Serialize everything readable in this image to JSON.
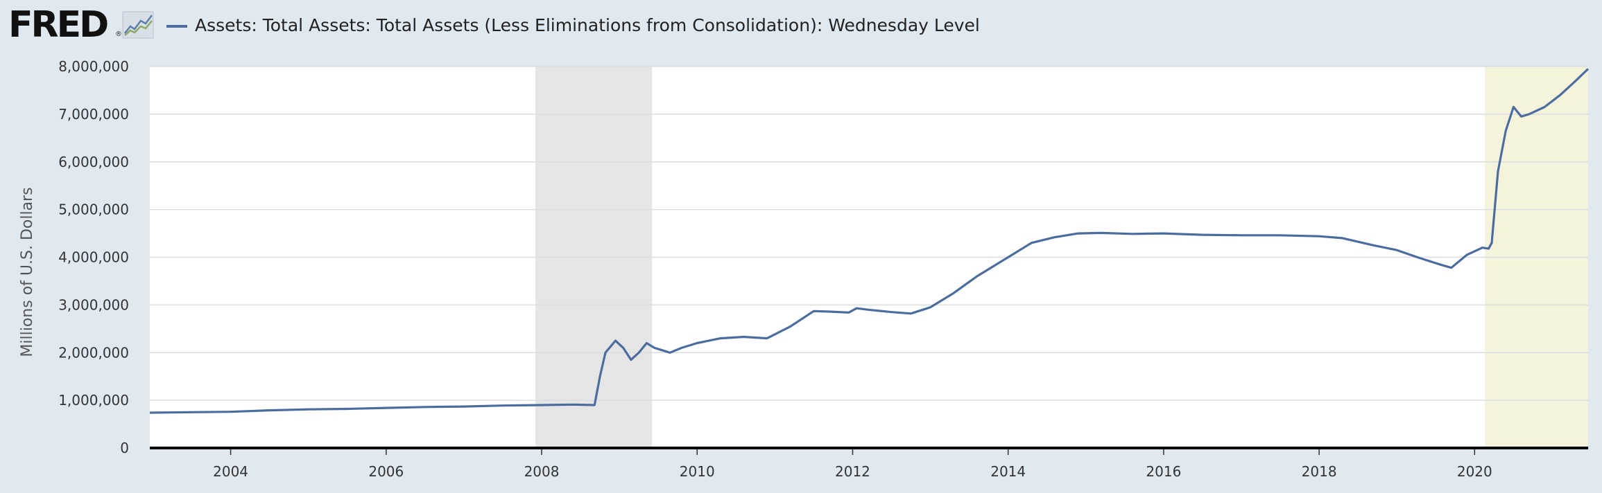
{
  "header": {
    "logo_text": "FRED",
    "logo_trademark": "®",
    "legend_label": "Assets: Total Assets: Total Assets (Less Eliminations from Consolidation): Wednesday Level"
  },
  "colors": {
    "series": "#4b6c9e",
    "background": "#e1e9f0",
    "plot_bg": "#ffffff",
    "recession_gray": "#e5e5e5",
    "recession_yellow": "#f5f3dc",
    "gridline": "#d9dde2",
    "axis": "#000000"
  },
  "chart_data": {
    "type": "line",
    "title": "Assets: Total Assets: Total Assets (Less Eliminations from Consolidation): Wednesday Level",
    "xlabel": "",
    "ylabel": "Millions of U.S. Dollars",
    "xlim": [
      2002.96,
      2021.46
    ],
    "ylim": [
      0,
      8000000
    ],
    "yticks": [
      0,
      1000000,
      2000000,
      3000000,
      4000000,
      5000000,
      6000000,
      7000000,
      8000000
    ],
    "ytick_labels": [
      "0",
      "1,000,000",
      "2,000,000",
      "3,000,000",
      "4,000,000",
      "5,000,000",
      "6,000,000",
      "7,000,000",
      "8,000,000"
    ],
    "xticks": [
      2004,
      2006,
      2008,
      2010,
      2012,
      2014,
      2016,
      2018,
      2020
    ],
    "xtick_labels": [
      "2004",
      "2006",
      "2008",
      "2010",
      "2012",
      "2014",
      "2016",
      "2018",
      "2020"
    ],
    "grid": true,
    "shaded_regions": [
      {
        "start": 2007.92,
        "end": 2009.42,
        "label": "recession"
      },
      {
        "start": 2020.13,
        "end": 2021.46,
        "label": "recession"
      }
    ],
    "series": [
      {
        "name": "Assets: Total Assets: Total Assets (Less Eliminations from Consolidation): Wednesday Level",
        "x": [
          2002.96,
          2003.5,
          2004.0,
          2004.5,
          2005.0,
          2005.5,
          2006.0,
          2006.5,
          2007.0,
          2007.5,
          2008.0,
          2008.4,
          2008.68,
          2008.75,
          2008.82,
          2008.95,
          2009.05,
          2009.15,
          2009.25,
          2009.35,
          2009.45,
          2009.55,
          2009.65,
          2009.8,
          2010.0,
          2010.3,
          2010.6,
          2010.9,
          2011.2,
          2011.5,
          2011.7,
          2011.95,
          2012.05,
          2012.2,
          2012.5,
          2012.75,
          2013.0,
          2013.3,
          2013.6,
          2014.0,
          2014.3,
          2014.6,
          2014.9,
          2015.2,
          2015.6,
          2016.0,
          2016.5,
          2017.0,
          2017.5,
          2018.0,
          2018.3,
          2018.7,
          2019.0,
          2019.3,
          2019.55,
          2019.7,
          2019.9,
          2020.1,
          2020.18,
          2020.22,
          2020.3,
          2020.4,
          2020.5,
          2020.6,
          2020.7,
          2020.9,
          2021.1,
          2021.3,
          2021.46
        ],
        "values": [
          740000,
          750000,
          760000,
          790000,
          810000,
          820000,
          840000,
          860000,
          870000,
          890000,
          900000,
          910000,
          900000,
          1500000,
          2000000,
          2250000,
          2100000,
          1850000,
          2000000,
          2200000,
          2100000,
          2050000,
          2000000,
          2100000,
          2200000,
          2300000,
          2330000,
          2300000,
          2550000,
          2870000,
          2860000,
          2840000,
          2930000,
          2900000,
          2850000,
          2820000,
          2950000,
          3250000,
          3600000,
          4000000,
          4300000,
          4420000,
          4500000,
          4510000,
          4490000,
          4500000,
          4470000,
          4460000,
          4460000,
          4440000,
          4400000,
          4250000,
          4150000,
          3980000,
          3850000,
          3780000,
          4050000,
          4200000,
          4180000,
          4300000,
          5800000,
          6650000,
          7150000,
          6950000,
          7000000,
          7150000,
          7400000,
          7700000,
          7950000
        ]
      }
    ]
  }
}
